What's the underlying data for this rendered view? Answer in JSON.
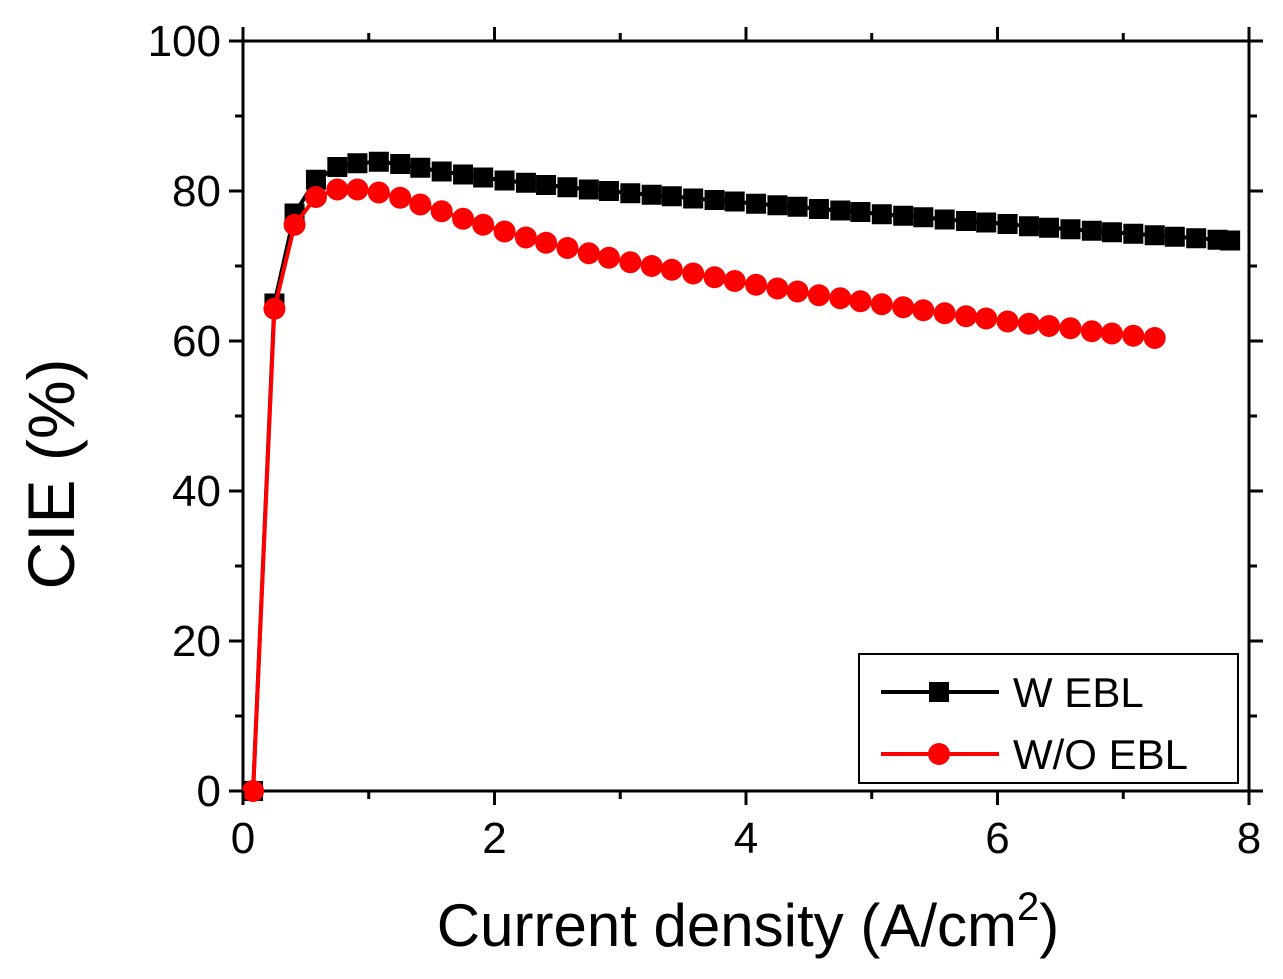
{
  "chart_data": {
    "type": "line",
    "title": "",
    "xlabel": "Current density (A/cm",
    "xlabel_sup": "2",
    "xlabel_close": ")",
    "ylabel": "CIE (%)",
    "xlim": [
      0,
      8
    ],
    "ylim": [
      0,
      100
    ],
    "xticks": [
      0,
      2,
      4,
      6,
      8
    ],
    "yticks": [
      0,
      20,
      40,
      60,
      80,
      100
    ],
    "legend_position": "bottom-right",
    "series": [
      {
        "name": "W EBL",
        "color": "#000000",
        "marker": "square",
        "x": [
          0.08,
          0.25,
          0.41,
          0.58,
          0.75,
          0.91,
          1.08,
          1.25,
          1.41,
          1.58,
          1.75,
          1.91,
          2.08,
          2.25,
          2.41,
          2.58,
          2.75,
          2.91,
          3.08,
          3.25,
          3.41,
          3.58,
          3.75,
          3.91,
          4.08,
          4.25,
          4.41,
          4.58,
          4.75,
          4.91,
          5.08,
          5.25,
          5.41,
          5.58,
          5.75,
          5.91,
          6.08,
          6.25,
          6.41,
          6.58,
          6.75,
          6.91,
          7.08,
          7.25,
          7.41,
          7.58,
          7.75,
          7.85
        ],
        "values": [
          0.0,
          65.0,
          77.0,
          81.5,
          83.2,
          83.7,
          83.9,
          83.6,
          83.1,
          82.6,
          82.2,
          81.8,
          81.4,
          81.1,
          80.8,
          80.5,
          80.2,
          80.0,
          79.7,
          79.5,
          79.3,
          79.0,
          78.8,
          78.6,
          78.3,
          78.1,
          77.9,
          77.6,
          77.4,
          77.2,
          76.9,
          76.7,
          76.5,
          76.2,
          76.0,
          75.8,
          75.6,
          75.3,
          75.1,
          74.9,
          74.7,
          74.5,
          74.3,
          74.1,
          73.9,
          73.7,
          73.5,
          73.4
        ]
      },
      {
        "name": "W/O EBL",
        "color": "#ff0000",
        "marker": "circle",
        "x": [
          0.08,
          0.25,
          0.41,
          0.58,
          0.75,
          0.91,
          1.08,
          1.25,
          1.41,
          1.58,
          1.75,
          1.91,
          2.08,
          2.25,
          2.41,
          2.58,
          2.75,
          2.91,
          3.08,
          3.25,
          3.41,
          3.58,
          3.75,
          3.91,
          4.08,
          4.25,
          4.41,
          4.58,
          4.75,
          4.91,
          5.08,
          5.25,
          5.41,
          5.58,
          5.75,
          5.91,
          6.08,
          6.25,
          6.41,
          6.58,
          6.75,
          6.91,
          7.08,
          7.25
        ],
        "values": [
          0.0,
          64.3,
          75.5,
          79.2,
          80.2,
          80.2,
          79.8,
          79.1,
          78.2,
          77.3,
          76.3,
          75.5,
          74.6,
          73.8,
          73.1,
          72.4,
          71.7,
          71.1,
          70.5,
          70.0,
          69.5,
          69.0,
          68.5,
          68.0,
          67.5,
          67.0,
          66.6,
          66.1,
          65.7,
          65.3,
          64.9,
          64.5,
          64.1,
          63.7,
          63.3,
          63.0,
          62.6,
          62.3,
          62.0,
          61.7,
          61.3,
          61.0,
          60.7,
          60.4
        ]
      }
    ]
  }
}
